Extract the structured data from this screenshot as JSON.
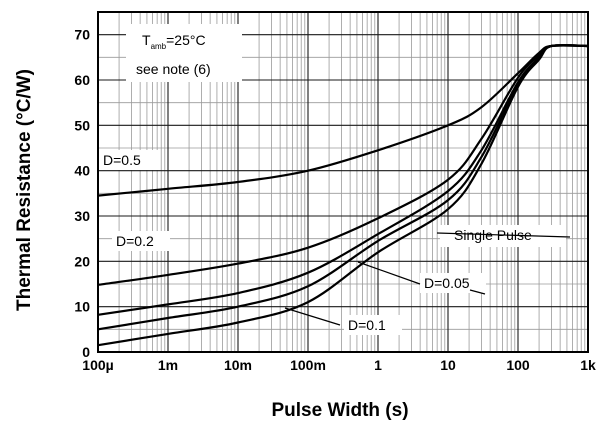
{
  "chart_data": {
    "type": "line",
    "xlabel": "Pulse Width (s)",
    "ylabel": "Thermal Resistance (°C/W)",
    "x_scale": "log",
    "xlim": [
      0.0001,
      1000
    ],
    "ylim": [
      0,
      75
    ],
    "x_ticks": [
      {
        "value": 0.0001,
        "label": "100µ"
      },
      {
        "value": 0.001,
        "label": "1m"
      },
      {
        "value": 0.01,
        "label": "10m"
      },
      {
        "value": 0.1,
        "label": "100m"
      },
      {
        "value": 1,
        "label": "1"
      },
      {
        "value": 10,
        "label": "10"
      },
      {
        "value": 100,
        "label": "100"
      },
      {
        "value": 1000,
        "label": "1k"
      }
    ],
    "y_ticks": [
      0,
      10,
      20,
      30,
      40,
      50,
      60,
      70
    ],
    "grid": true,
    "note": {
      "line1_main": "T",
      "line1_sub": "amb",
      "line1_rest": "=25°C",
      "line2": "see note (6)"
    },
    "series": [
      {
        "name": "D=0.5",
        "x": [
          0.0001,
          0.001,
          0.01,
          0.1,
          1,
          10,
          30,
          100,
          200,
          300,
          1000
        ],
        "y": [
          34.5,
          36,
          37.5,
          40,
          44.5,
          50,
          54,
          61.5,
          66,
          67.5,
          67.5
        ]
      },
      {
        "name": "D=0.2",
        "x": [
          0.0001,
          0.001,
          0.01,
          0.1,
          1,
          10,
          30,
          100,
          200,
          300,
          1000
        ],
        "y": [
          14.8,
          17,
          19.5,
          23,
          29.5,
          38,
          47,
          60.5,
          65.5,
          67.5,
          67.5
        ]
      },
      {
        "name": "D=0.1",
        "x": [
          0.0001,
          0.001,
          0.01,
          0.1,
          1,
          10,
          30,
          100,
          200,
          300,
          1000
        ],
        "y": [
          8.2,
          10.5,
          13,
          17.5,
          26,
          35.5,
          44.5,
          59.5,
          65,
          67.5,
          67.5
        ]
      },
      {
        "name": "D=0.05",
        "x": [
          0.0001,
          0.001,
          0.01,
          0.1,
          1,
          10,
          30,
          100,
          200,
          300,
          1000
        ],
        "y": [
          5,
          7.5,
          10,
          14.5,
          24.5,
          33.5,
          43,
          59,
          65,
          67.5,
          67.5
        ]
      },
      {
        "name": "Single Pulse",
        "x": [
          0.0001,
          0.001,
          0.01,
          0.1,
          1,
          10,
          30,
          100,
          200,
          300,
          1000
        ],
        "y": [
          1.5,
          4,
          6.5,
          11,
          22,
          31.5,
          41.5,
          58.5,
          64.5,
          67.5,
          67.5
        ]
      }
    ],
    "annotations": [
      {
        "text": "D=0.5",
        "series": "D=0.5"
      },
      {
        "text": "D=0.2",
        "series": "D=0.2"
      },
      {
        "text": "Single Pulse",
        "series": "Single Pulse"
      },
      {
        "text": "D=0.05",
        "series": "D=0.05"
      },
      {
        "text": "D=0.1",
        "series": "D=0.1"
      }
    ]
  }
}
